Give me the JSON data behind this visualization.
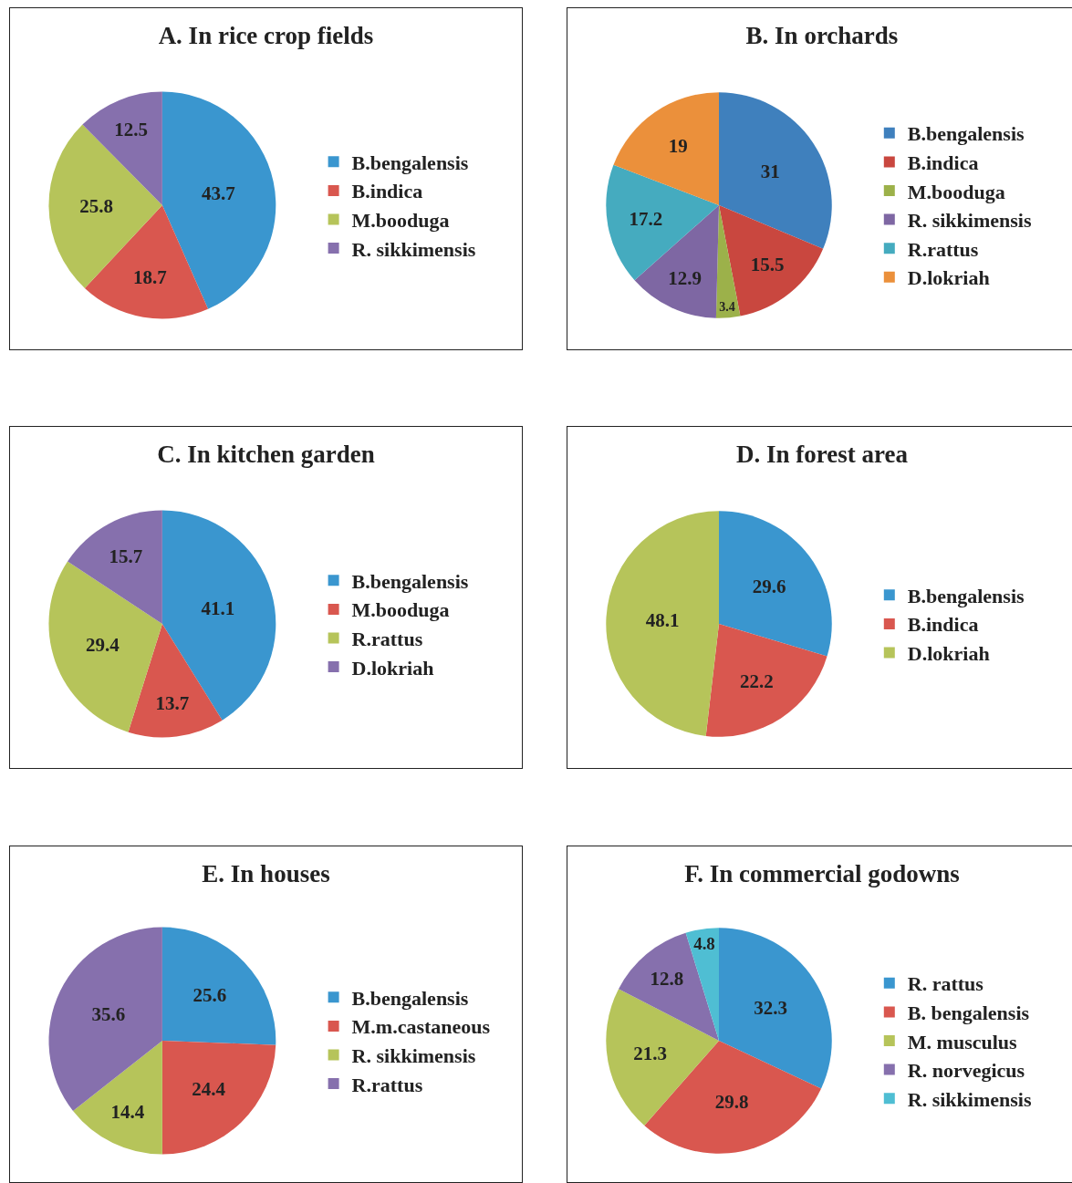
{
  "chart_data": [
    {
      "type": "pie",
      "title": "A. In rice crop fields",
      "categories": [
        "B.bengalensis",
        "B.indica",
        "M.booduga",
        "R. sikkimensis"
      ],
      "values": [
        43.7,
        18.7,
        25.8,
        12.5
      ],
      "colors": [
        "#3a96cf",
        "#d9574f",
        "#b6c45a",
        "#8670ad"
      ],
      "data_labels": true,
      "legend": "right"
    },
    {
      "type": "pie",
      "title": "B. In orchards",
      "categories": [
        "B.bengalensis",
        "B.indica",
        "M.booduga",
        "R. sikkimensis",
        "R.rattus",
        "D.lokriah"
      ],
      "values": [
        31,
        15.5,
        3.4,
        12.9,
        17.2,
        19
      ],
      "colors": [
        "#3f80bd",
        "#c9473f",
        "#9cb14a",
        "#7e67a3",
        "#45abbf",
        "#eb903b"
      ],
      "data_labels": true,
      "legend": "right"
    },
    {
      "type": "pie",
      "title": "C. In kitchen garden",
      "categories": [
        "B.bengalensis",
        "M.booduga",
        "R.rattus",
        "D.lokriah"
      ],
      "values": [
        41.1,
        13.7,
        29.4,
        15.7
      ],
      "colors": [
        "#3a96cf",
        "#d9574f",
        "#b6c45a",
        "#8670ad"
      ],
      "data_labels": true,
      "legend": "right"
    },
    {
      "type": "pie",
      "title": "D. In forest area",
      "categories": [
        "B.bengalensis",
        "B.indica",
        "D.lokriah"
      ],
      "values": [
        29.6,
        22.2,
        48.1
      ],
      "colors": [
        "#3a96cf",
        "#d9574f",
        "#b6c45a"
      ],
      "data_labels": true,
      "legend": "right"
    },
    {
      "type": "pie",
      "title": "E. In houses",
      "categories": [
        "B.bengalensis",
        "M.m.castaneous",
        "R. sikkimensis",
        "R.rattus"
      ],
      "values": [
        25.6,
        24.4,
        14.4,
        35.6
      ],
      "colors": [
        "#3a96cf",
        "#d9574f",
        "#b6c45a",
        "#8670ad"
      ],
      "data_labels": true,
      "legend": "right"
    },
    {
      "type": "pie",
      "title": "F. In commercial godowns",
      "categories": [
        "R. rattus",
        "B. bengalensis",
        "M. musculus",
        "R. norvegicus",
        "R. sikkimensis"
      ],
      "values": [
        32.3,
        29.8,
        21.3,
        12.8,
        4.8
      ],
      "colors": [
        "#3a96cf",
        "#d9574f",
        "#b6c45a",
        "#8670ad",
        "#4fbed3"
      ],
      "data_labels": true,
      "legend": "right"
    }
  ]
}
